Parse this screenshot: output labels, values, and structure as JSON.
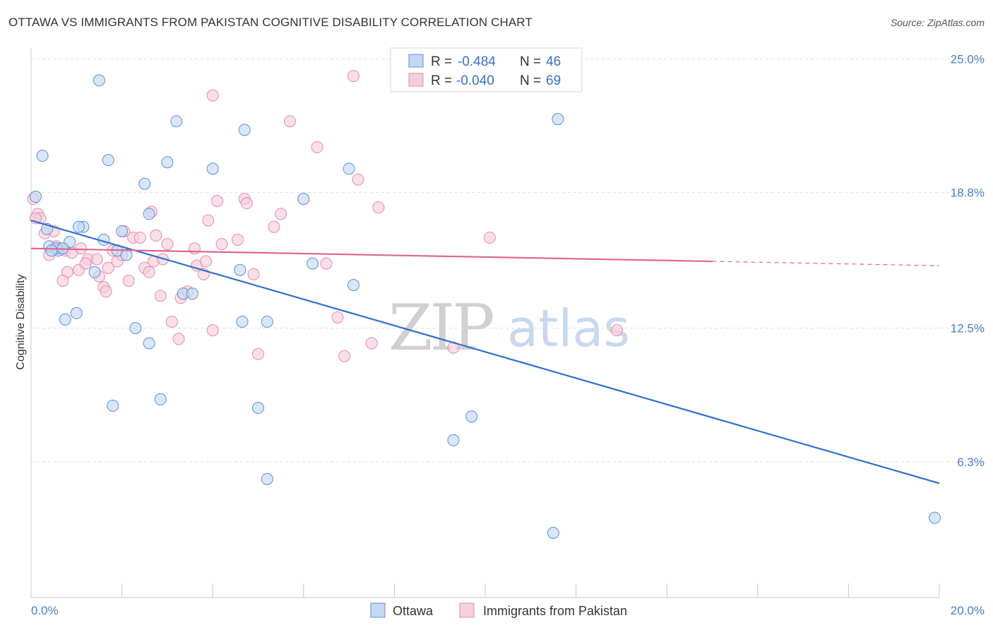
{
  "title": "OTTAWA VS IMMIGRANTS FROM PAKISTAN COGNITIVE DISABILITY CORRELATION CHART",
  "source": "Source: ZipAtlas.com",
  "watermark": {
    "zip": "ZIP",
    "atlas": "atlas"
  },
  "colors": {
    "ottawa_fill": "#c5d8f2",
    "ottawa_stroke": "#5b8fd6",
    "ottawa_line": "#2f6fd0",
    "pakistan_fill": "#f8cedc",
    "pakistan_stroke": "#e58aa8",
    "pakistan_line": "#e06592",
    "tick_text": "#4a7cc9",
    "grid": "#e0e0e0"
  },
  "legend": {
    "rows": [
      {
        "r_label": "R =",
        "r_value": "-0.484",
        "n_label": "N =",
        "n_value": "46"
      },
      {
        "r_label": "R =",
        "r_value": "-0.040",
        "n_label": "N =",
        "n_value": "69"
      }
    ]
  },
  "chart_data": {
    "type": "scatter",
    "title": "OTTAWA VS IMMIGRANTS FROM PAKISTAN COGNITIVE DISABILITY CORRELATION CHART",
    "xlabel": "",
    "ylabel": "Cognitive Disability",
    "xlim": [
      0,
      20
    ],
    "ylim": [
      0,
      25.5
    ],
    "x_tick_labels": [
      "0.0%",
      "20.0%"
    ],
    "y_ticks": [
      6.3,
      12.5,
      18.8,
      25.0
    ],
    "y_tick_labels": [
      "6.3%",
      "12.5%",
      "18.8%",
      "25.0%"
    ],
    "grid": true,
    "legend_position": "top-center",
    "series": [
      {
        "name": "Ottawa",
        "points": [
          [
            0.1,
            18.6
          ],
          [
            0.35,
            17.1
          ],
          [
            0.4,
            16.3
          ],
          [
            0.6,
            16.1
          ],
          [
            0.55,
            16.2
          ],
          [
            0.45,
            16.1
          ],
          [
            0.25,
            20.5
          ],
          [
            1.5,
            24.0
          ],
          [
            1.7,
            20.3
          ],
          [
            3.2,
            22.1
          ],
          [
            4.0,
            19.9
          ],
          [
            4.7,
            21.7
          ],
          [
            3.0,
            20.2
          ],
          [
            2.5,
            19.2
          ],
          [
            2.6,
            17.8
          ],
          [
            1.15,
            17.2
          ],
          [
            1.05,
            17.2
          ],
          [
            1.6,
            16.6
          ],
          [
            2.0,
            17.0
          ],
          [
            1.9,
            16.1
          ],
          [
            2.1,
            15.9
          ],
          [
            0.85,
            16.5
          ],
          [
            0.7,
            16.2
          ],
          [
            1.4,
            15.1
          ],
          [
            3.35,
            14.1
          ],
          [
            3.55,
            14.1
          ],
          [
            4.6,
            15.2
          ],
          [
            6.2,
            15.5
          ],
          [
            7.1,
            14.5
          ],
          [
            6.0,
            18.5
          ],
          [
            7.0,
            19.9
          ],
          [
            11.6,
            22.2
          ],
          [
            1.0,
            13.2
          ],
          [
            0.75,
            12.9
          ],
          [
            2.3,
            12.5
          ],
          [
            2.6,
            11.8
          ],
          [
            4.65,
            12.8
          ],
          [
            5.2,
            12.8
          ],
          [
            1.8,
            8.9
          ],
          [
            2.85,
            9.2
          ],
          [
            5.0,
            8.8
          ],
          [
            9.7,
            8.4
          ],
          [
            9.3,
            7.3
          ],
          [
            5.2,
            5.5
          ],
          [
            11.5,
            3.0
          ],
          [
            19.9,
            3.7
          ]
        ],
        "trend": {
          "x": [
            0,
            20
          ],
          "y": [
            17.5,
            5.3
          ]
        }
      },
      {
        "name": "Immigrants from Pakistan",
        "points": [
          [
            0.05,
            18.5
          ],
          [
            0.15,
            17.8
          ],
          [
            0.2,
            17.6
          ],
          [
            0.3,
            16.9
          ],
          [
            0.5,
            17.0
          ],
          [
            0.55,
            16.3
          ],
          [
            0.65,
            16.2
          ],
          [
            0.4,
            15.9
          ],
          [
            0.75,
            16.1
          ],
          [
            0.9,
            16.0
          ],
          [
            1.1,
            16.2
          ],
          [
            1.25,
            15.7
          ],
          [
            0.8,
            15.1
          ],
          [
            0.7,
            14.7
          ],
          [
            1.05,
            15.2
          ],
          [
            1.2,
            15.5
          ],
          [
            1.45,
            15.7
          ],
          [
            1.5,
            14.9
          ],
          [
            1.6,
            14.4
          ],
          [
            1.7,
            15.3
          ],
          [
            1.65,
            14.2
          ],
          [
            1.8,
            16.1
          ],
          [
            1.9,
            15.6
          ],
          [
            2.0,
            15.9
          ],
          [
            2.15,
            14.7
          ],
          [
            2.05,
            17.0
          ],
          [
            2.25,
            16.7
          ],
          [
            2.4,
            16.7
          ],
          [
            2.5,
            15.3
          ],
          [
            2.6,
            15.1
          ],
          [
            2.7,
            15.6
          ],
          [
            2.75,
            16.8
          ],
          [
            2.65,
            17.9
          ],
          [
            2.9,
            15.7
          ],
          [
            3.0,
            16.4
          ],
          [
            2.85,
            14.0
          ],
          [
            3.1,
            12.8
          ],
          [
            3.25,
            12.0
          ],
          [
            3.3,
            13.9
          ],
          [
            3.45,
            14.2
          ],
          [
            3.6,
            16.2
          ],
          [
            3.65,
            15.4
          ],
          [
            3.8,
            15.0
          ],
          [
            3.85,
            15.6
          ],
          [
            3.9,
            17.5
          ],
          [
            4.0,
            12.4
          ],
          [
            4.1,
            18.4
          ],
          [
            4.2,
            16.4
          ],
          [
            4.0,
            23.3
          ],
          [
            4.55,
            16.6
          ],
          [
            4.7,
            18.5
          ],
          [
            4.75,
            18.3
          ],
          [
            4.9,
            15.0
          ],
          [
            5.0,
            11.3
          ],
          [
            5.35,
            17.2
          ],
          [
            5.5,
            17.8
          ],
          [
            5.7,
            22.1
          ],
          [
            6.3,
            20.9
          ],
          [
            6.5,
            15.5
          ],
          [
            6.75,
            13.0
          ],
          [
            6.9,
            11.2
          ],
          [
            7.1,
            24.2
          ],
          [
            7.2,
            19.4
          ],
          [
            7.5,
            11.8
          ],
          [
            7.65,
            18.1
          ],
          [
            9.3,
            11.6
          ],
          [
            10.1,
            16.7
          ],
          [
            12.9,
            12.4
          ],
          [
            0.1,
            17.6
          ]
        ],
        "trend": {
          "x": [
            0,
            15
          ],
          "y": [
            16.2,
            15.6
          ]
        },
        "trend_dashed": {
          "x": [
            15,
            20
          ],
          "y": [
            15.6,
            15.4
          ]
        }
      }
    ]
  },
  "bottom_legend": [
    {
      "label": "Ottawa"
    },
    {
      "label": "Immigrants from Pakistan"
    }
  ]
}
